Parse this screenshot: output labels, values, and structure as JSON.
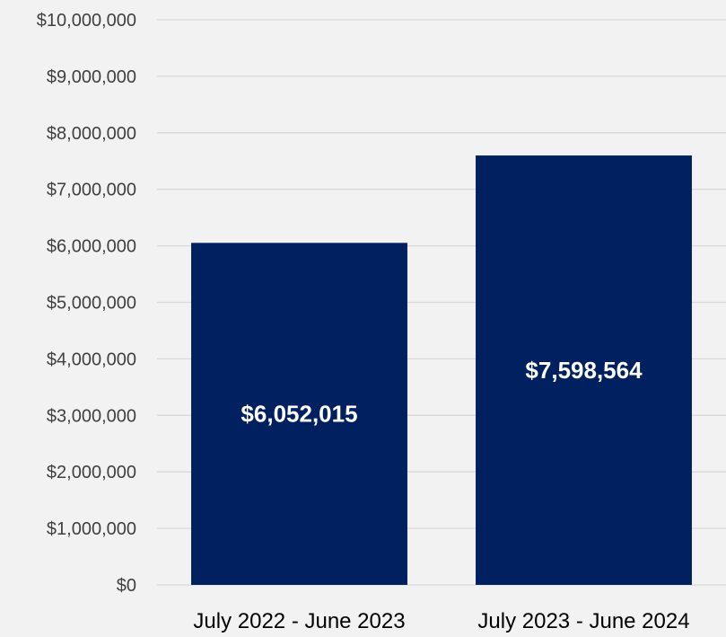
{
  "chart_data": {
    "type": "bar",
    "title": "",
    "xlabel": "",
    "ylabel": "",
    "categories": [
      "July 2022 - June 2023",
      "July 2023 - June 2024"
    ],
    "values": [
      6052015,
      7598564
    ],
    "data_labels": [
      "$6,052,015",
      "$7,598,564"
    ],
    "ylim": [
      0,
      10000000
    ],
    "y_ticks": [
      {
        "value": 0,
        "label": "$0"
      },
      {
        "value": 1000000,
        "label": "$1,000,000"
      },
      {
        "value": 2000000,
        "label": "$2,000,000"
      },
      {
        "value": 3000000,
        "label": "$3,000,000"
      },
      {
        "value": 4000000,
        "label": "$4,000,000"
      },
      {
        "value": 5000000,
        "label": "$5,000,000"
      },
      {
        "value": 6000000,
        "label": "$6,000,000"
      },
      {
        "value": 7000000,
        "label": "$7,000,000"
      },
      {
        "value": 8000000,
        "label": "$8,000,000"
      },
      {
        "value": 9000000,
        "label": "$9,000,000"
      },
      {
        "value": 10000000,
        "label": "$10,000,000"
      }
    ],
    "grid": true,
    "legend": "none",
    "colors": {
      "bar": "#002060",
      "background": "#f2f2f2",
      "grid": "#d9d9d9"
    }
  }
}
